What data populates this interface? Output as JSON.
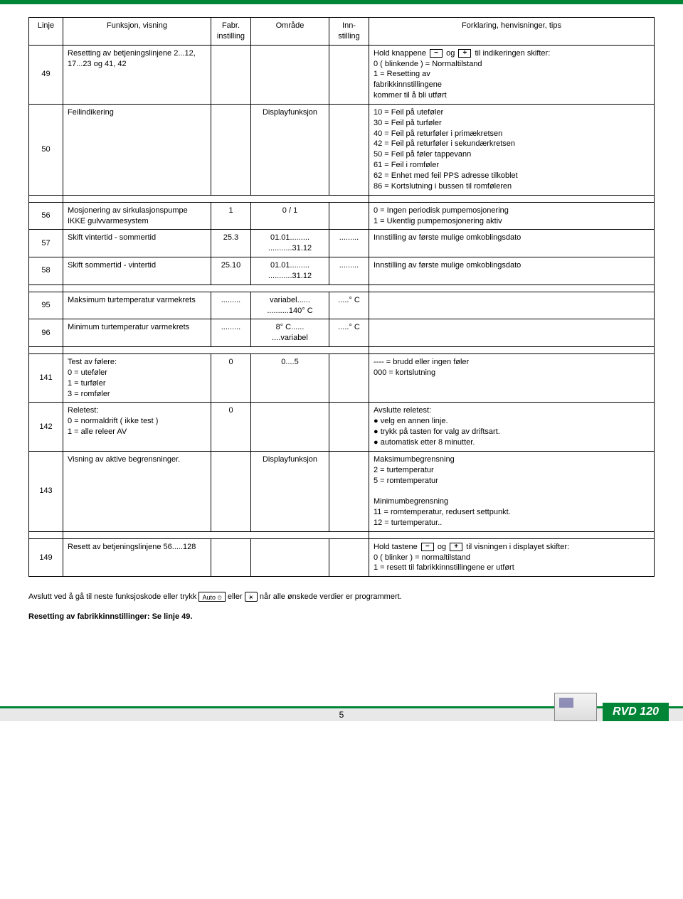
{
  "header": {
    "cols": [
      "Linje",
      "Funksjon, visning",
      "Fabr. instilling",
      "Område",
      "Inn- stilling",
      "Forklaring, henvisninger, tips"
    ]
  },
  "rows_a": [
    {
      "linje": "49",
      "funk": "Resetting av betjeningslinjene 2...12,  17...23 og 41, 42",
      "fabr": "",
      "omr": "",
      "inn": "",
      "fork": "Hold knappene  [−]  og  [+]  til indikeringen skifter:\n0 ( blinkende ) = Normaltilstand\n1               = Resetting av\n                  fabrikkinnstillingene\n                  kommer til å bli utført"
    },
    {
      "linje": "50",
      "funk": "Feilindikering",
      "fabr": "",
      "omr": "Displayfunksjon",
      "inn": "",
      "fork": "10 = Feil på uteføler\n30 = Feil på turføler\n40 = Feil på returføler i primækretsen\n42 = Feil på returføler i sekundærkretsen\n50 = Feil på føler tappevann\n61 = Feil i romføler\n62 = Enhet med feil PPS adresse tilkoblet\n86 = Kortslutning i bussen til romføleren"
    }
  ],
  "rows_b": [
    {
      "linje": "56",
      "funk": "Mosjonering av sirkulasjonspumpe IKKE gulvvarmesystem",
      "fabr": "1",
      "omr": "0 / 1",
      "inn": "",
      "fork": "0 = Ingen periodisk pumpemosjonering\n1 = Ukentlig pumpemosjonering aktiv"
    },
    {
      "linje": "57",
      "funk": "Skift vintertid - sommertid",
      "fabr": "25.3",
      "omr": "01.01.........\n...........31.12",
      "inn": ".........",
      "fork": "Innstilling av første mulige omkoblingsdato"
    },
    {
      "linje": "58",
      "funk": "Skift sommertid - vintertid",
      "fabr": "25.10",
      "omr": "01.01.........\n...........31.12",
      "inn": ".........",
      "fork": "Innstilling av første mulige omkoblingsdato"
    }
  ],
  "rows_c": [
    {
      "linje": "95",
      "funk": "Maksimum turtemperatur varmekrets",
      "fabr": ".........",
      "omr": "variabel......\n..........140° C",
      "inn": ".....° C",
      "fork": ""
    },
    {
      "linje": "96",
      "funk": "Minimum turtemperatur varmekrets",
      "fabr": ".........",
      "omr": "  8° C......\n....variabel",
      "inn": ".....° C",
      "fork": ""
    }
  ],
  "rows_d": [
    {
      "linje": "141",
      "funk": "Test av følere:\n0 = uteføler\n1 = turføler\n3 = romføler",
      "fabr": "0",
      "omr": "0....5",
      "inn": "",
      "fork": "---- = brudd eller ingen føler\n000 = kortslutning"
    },
    {
      "linje": "142",
      "funk": "Reletest:\n0 = normaldrift ( ikke test )\n1 = alle releer AV",
      "fabr": "0",
      "omr": "",
      "inn": "",
      "fork": "Avslutte reletest:\n● velg en annen linje.\n● trykk på tasten for valg av driftsart.\n● automatisk etter 8 minutter."
    },
    {
      "linje": "143",
      "funk": "Visning av aktive begrensninger.",
      "fabr": "",
      "omr": "Displayfunksjon",
      "inn": "",
      "fork": "Maksimumbegrensning\n2 = turtemperatur\n5 = romtemperatur\n\nMinimumbegrensning\n11 = romtemperatur, redusert settpunkt.\n12 = turtemperatur.."
    }
  ],
  "rows_e": [
    {
      "linje": "149",
      "funk": "Resett av betjeningslinjene 56.....128",
      "fabr": "",
      "omr": "",
      "inn": "",
      "fork": "Hold tastene  [−]  og  [+]  til visningen i displayet skifter:\n0 ( blinker ) = normaltilstand\n1 = resett til fabrikkinnstillingene er utført"
    }
  ],
  "footer": {
    "line1_a": "Avslutt ved å gå til neste funksjoskode eller trykk",
    "auto_key": "Auto",
    "line1_b": "eller",
    "line1_c": "når alle ønskede verdier er programmert.",
    "line2": "Resetting av fabrikkinnstillinger: Se linje 49."
  },
  "page_footer": {
    "page_num": "5",
    "product": "RVD 120"
  }
}
